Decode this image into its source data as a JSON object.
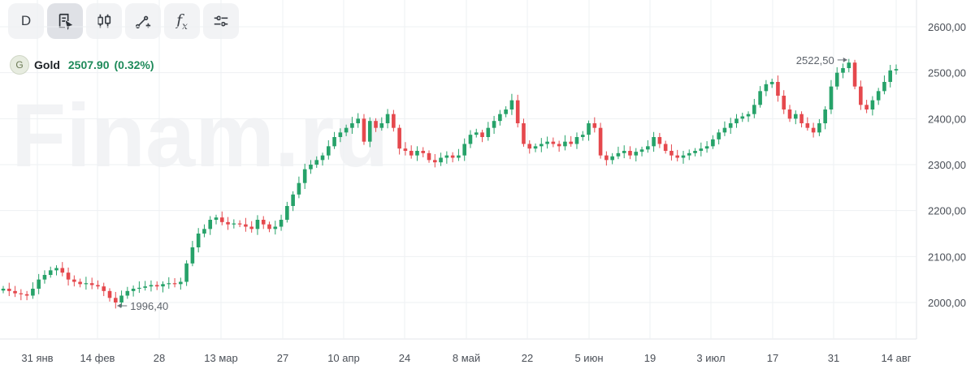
{
  "toolbar": {
    "buttons": [
      {
        "name": "interval-button",
        "label": "D",
        "icon": "text"
      },
      {
        "name": "chart-type-button",
        "label": "",
        "icon": "document-cursor-icon"
      },
      {
        "name": "candles-button",
        "label": "",
        "icon": "candlestick-icon"
      },
      {
        "name": "drawing-tools-button",
        "label": "",
        "icon": "line-plus-icon"
      },
      {
        "name": "indicators-button",
        "label": "",
        "icon": "fx-icon"
      },
      {
        "name": "settings-button",
        "label": "",
        "icon": "sliders-icon"
      }
    ]
  },
  "legend": {
    "badge": "G",
    "symbol": "Gold",
    "price": "2507.90",
    "change": "(0.32%)"
  },
  "watermark": "Finam.ru",
  "colors": {
    "up": "#26a269",
    "down": "#e5484d",
    "grid": "#eef0f3",
    "axis_text": "#4a4f57"
  },
  "chart_data": {
    "type": "candlestick",
    "ylim": [
      1920,
      2640
    ],
    "yticks": [
      "2600,00",
      "2500,00",
      "2400,00",
      "2300,00",
      "2200,00",
      "2100,00",
      "2000,00"
    ],
    "ytick_values": [
      2600,
      2500,
      2400,
      2300,
      2200,
      2100,
      2000
    ],
    "xticks": [
      "31 янв",
      "14 фев",
      "28",
      "13 мар",
      "27",
      "10 апр",
      "24",
      "8 май",
      "22",
      "5 июн",
      "19",
      "3 июл",
      "17",
      "31",
      "14 авг"
    ],
    "closes": [
      2030,
      2025,
      2020,
      2018,
      2015,
      2030,
      2050,
      2060,
      2070,
      2075,
      2065,
      2050,
      2045,
      2040,
      2042,
      2038,
      2035,
      2025,
      2010,
      2000,
      2015,
      2025,
      2030,
      2032,
      2035,
      2038,
      2035,
      2040,
      2042,
      2040,
      2045,
      2085,
      2120,
      2150,
      2160,
      2180,
      2185,
      2175,
      2170,
      2172,
      2170,
      2165,
      2160,
      2180,
      2170,
      2160,
      2165,
      2180,
      2210,
      2235,
      2260,
      2290,
      2300,
      2310,
      2320,
      2340,
      2360,
      2370,
      2380,
      2390,
      2400,
      2350,
      2395,
      2380,
      2390,
      2410,
      2380,
      2335,
      2330,
      2320,
      2330,
      2325,
      2310,
      2305,
      2315,
      2320,
      2315,
      2320,
      2345,
      2365,
      2370,
      2360,
      2380,
      2395,
      2410,
      2420,
      2440,
      2390,
      2345,
      2335,
      2340,
      2345,
      2350,
      2345,
      2340,
      2350,
      2345,
      2360,
      2365,
      2390,
      2380,
      2320,
      2310,
      2318,
      2325,
      2330,
      2320,
      2328,
      2333,
      2340,
      2360,
      2345,
      2330,
      2320,
      2315,
      2320,
      2325,
      2330,
      2335,
      2340,
      2355,
      2370,
      2380,
      2390,
      2400,
      2405,
      2410,
      2430,
      2460,
      2475,
      2480,
      2450,
      2420,
      2400,
      2410,
      2390,
      2380,
      2370,
      2390,
      2420,
      2470,
      2500,
      2510,
      2522,
      2470,
      2430,
      2420,
      2440,
      2460,
      2480,
      2505,
      2508
    ],
    "low": {
      "label": "1996,40",
      "value": 1996.4
    },
    "high": {
      "label": "2522,50",
      "value": 2522.5
    }
  }
}
